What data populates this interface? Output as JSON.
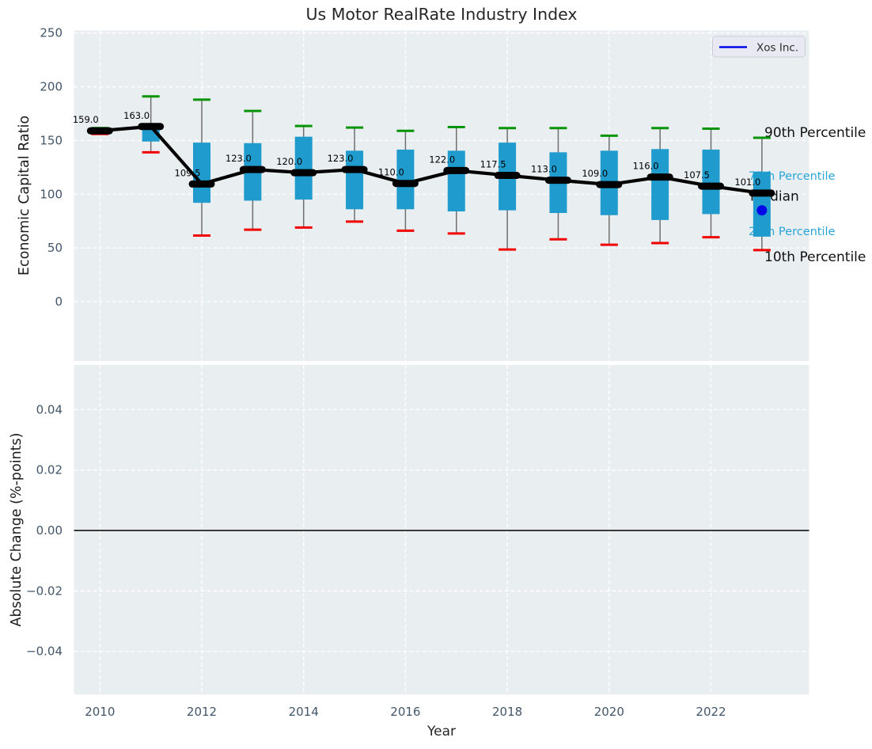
{
  "title": "Us Motor RealRate Industry Index",
  "legend": {
    "label": "Xos Inc."
  },
  "annotations": {
    "p90": "90th Percentile",
    "p75": "75th Percentile",
    "median": "Median",
    "p25": "25th Percentile",
    "p10": "10th Percentile"
  },
  "axes": {
    "top_ylabel": "Economic Capital Ratio",
    "bottom_ylabel": "Absolute Change (%-points)",
    "xlabel": "Year",
    "top_ytick_labels": [
      "0",
      "50",
      "100",
      "150",
      "200",
      "250"
    ],
    "bottom_ytick_labels": [
      "0.04",
      "0.02",
      "0.00",
      "−0.02",
      "−0.04"
    ],
    "xtick_labels": [
      "2010",
      "2012",
      "2014",
      "2016",
      "2018",
      "2020",
      "2022"
    ]
  },
  "chart_data": {
    "type": "boxplot",
    "title": "Us Motor RealRate Industry Index",
    "xlabel": "Year",
    "top_panel_ylabel": "Economic Capital Ratio",
    "bottom_panel_ylabel": "Absolute Change (%-points)",
    "x": [
      2010,
      2011,
      2012,
      2013,
      2014,
      2015,
      2016,
      2017,
      2018,
      2019,
      2020,
      2021,
      2022,
      2023
    ],
    "xtick_vals": [
      2010,
      2012,
      2014,
      2016,
      2018,
      2020,
      2022
    ],
    "top_ytick_vals": [
      0,
      50,
      100,
      150,
      200,
      250
    ],
    "bottom_ytick_vals": [
      0.04,
      0.02,
      0.0,
      -0.02,
      -0.04
    ],
    "top_ylim": [
      -55,
      253
    ],
    "bottom_ylim": [
      -0.0545,
      0.0548
    ],
    "grid": true,
    "legend_position": "upper right",
    "series": [
      {
        "name": "10th Percentile",
        "values": [
          156,
          139,
          61.5,
          67,
          69,
          74.5,
          66,
          63.5,
          48.5,
          58,
          53,
          54.5,
          60,
          48
        ]
      },
      {
        "name": "25th Percentile",
        "values": [
          157,
          149,
          92,
          94,
          95,
          86,
          86,
          84,
          85,
          82.5,
          80.5,
          76,
          81.5,
          60.5
        ]
      },
      {
        "name": "Median",
        "values": [
          159,
          163,
          109.5,
          123,
          120,
          123,
          110,
          122,
          117.5,
          113,
          109,
          116,
          107.5,
          101
        ]
      },
      {
        "name": "75th Percentile",
        "values": [
          160.5,
          163.5,
          148,
          147.5,
          153.5,
          140.5,
          141.5,
          140.5,
          148,
          139,
          140.5,
          142,
          141.5,
          121
        ]
      },
      {
        "name": "90th Percentile",
        "values": [
          161.5,
          191,
          188,
          177.5,
          163.5,
          162,
          159,
          162.5,
          161.5,
          161.5,
          154.5,
          161.5,
          161,
          152.5
        ]
      }
    ],
    "median_labels": [
      "159.0",
      "163.0",
      "109.5",
      "123.0",
      "120.0",
      "123.0",
      "110.0",
      "122.0",
      "117.5",
      "113.0",
      "109.0",
      "116.0",
      "107.5",
      "101.0"
    ],
    "company_point": {
      "name": "Xos Inc.",
      "x": 2023,
      "y": 85
    },
    "bottom_panel_zero_line": 0.0,
    "colors": {
      "box": "#1f9ccd",
      "p90_cap": "#089408",
      "p10_cap": "#f10000",
      "median_line": "#000000",
      "whisker": "#6f6f6f",
      "company": "#0008e8",
      "annotation_cyan": "#29a5d8",
      "annotation_black": "#111111",
      "panel_bg": "#e9eef0",
      "grid_line": "#ffffff",
      "tick_label": "#42566a",
      "axis_label": "#262626"
    }
  }
}
